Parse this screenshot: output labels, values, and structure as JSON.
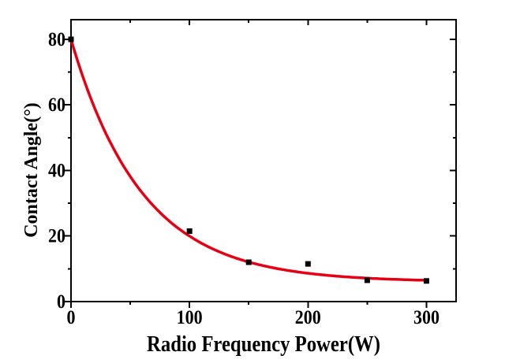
{
  "figure": {
    "background": "#ffffff",
    "frame_color": "#000000",
    "curve_color": "#e60014",
    "marker_color": "#000000"
  },
  "chart_data": {
    "type": "scatter",
    "title": "",
    "xlabel": "Radio Frequency Power(W)",
    "ylabel": "Contact Angle(°)",
    "xlim": [
      0,
      325
    ],
    "ylim": [
      0,
      86
    ],
    "grid": false,
    "legend": "none",
    "x_major_ticks": [
      0,
      100,
      200,
      300
    ],
    "x_minor_ticks": [
      50,
      150,
      250
    ],
    "y_major_ticks": [
      0,
      20,
      40,
      60,
      80
    ],
    "y_minor_ticks": [
      10,
      30,
      50,
      70
    ],
    "x_tick_labels": [
      "0",
      "100",
      "200",
      "300"
    ],
    "y_tick_labels": [
      "0",
      "20",
      "40",
      "60",
      "80"
    ],
    "series": [
      {
        "name": "exponential-fit-curve",
        "type": "line",
        "color": "#e60014",
        "fit": {
          "model": "y = y0 + A*exp(-x/tau)",
          "y0": 6,
          "A": 74,
          "tau": 60,
          "x_range": [
            0,
            300
          ]
        }
      },
      {
        "name": "measured-contact-angle",
        "type": "scatter",
        "marker": "square",
        "color": "#000000",
        "points": [
          [
            0,
            80
          ],
          [
            100,
            21.5
          ],
          [
            150,
            12
          ],
          [
            200,
            11.5
          ],
          [
            250,
            6.5
          ],
          [
            300,
            6.3
          ]
        ]
      }
    ]
  }
}
